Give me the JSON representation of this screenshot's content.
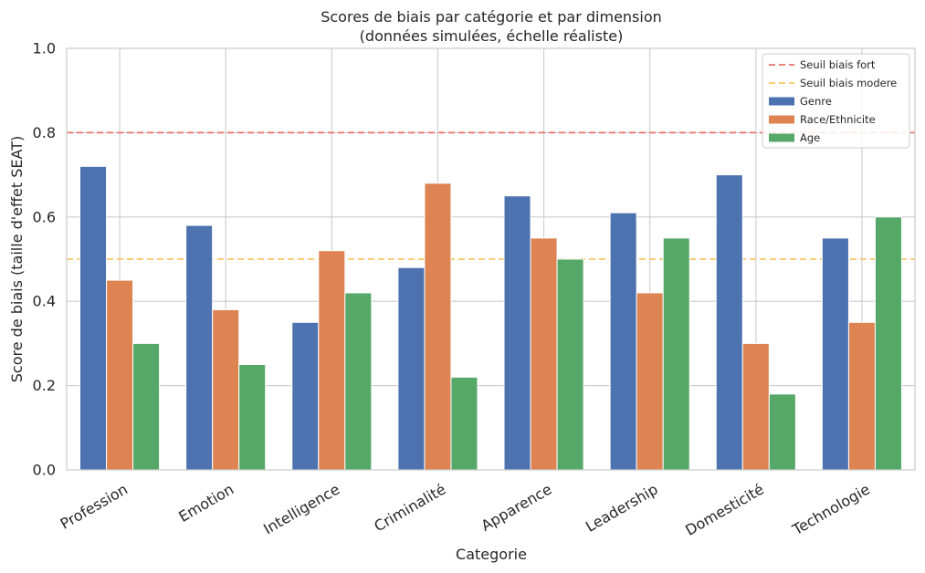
{
  "chart_data": {
    "type": "bar",
    "title_line1": "Scores de biais par catégorie et par dimension",
    "title_line2": "(données simulées, échelle réaliste)",
    "xlabel": "Categorie",
    "ylabel": "Score de biais (taille d'effet SEAT)",
    "ylim": [
      0,
      1.0
    ],
    "yticks": [
      "0.0",
      "0.2",
      "0.4",
      "0.6",
      "0.8",
      "1.0"
    ],
    "ytick_values": [
      0,
      0.2,
      0.4,
      0.6,
      0.8,
      1.0
    ],
    "grid": true,
    "legend_position": "top-right",
    "categories": [
      "Profession",
      "Emotion",
      "Intelligence",
      "Criminalité",
      "Apparence",
      "Leadership",
      "Domesticité",
      "Technologie"
    ],
    "series": [
      {
        "name": "Genre",
        "color": "#4c72b0",
        "values": [
          0.72,
          0.58,
          0.35,
          0.48,
          0.65,
          0.61,
          0.7,
          0.55
        ]
      },
      {
        "name": "Race/Ethnicite",
        "color": "#dd8452",
        "values": [
          0.45,
          0.38,
          0.52,
          0.68,
          0.55,
          0.42,
          0.3,
          0.35
        ]
      },
      {
        "name": "Age",
        "color": "#55a868",
        "values": [
          0.3,
          0.25,
          0.42,
          0.22,
          0.5,
          0.55,
          0.18,
          0.6
        ]
      }
    ],
    "reference_lines": [
      {
        "name": "Seuil biais fort",
        "value": 0.8,
        "color": "#e8726a"
      },
      {
        "name": "Seuil biais modere",
        "value": 0.5,
        "color": "#f6c667"
      }
    ]
  }
}
